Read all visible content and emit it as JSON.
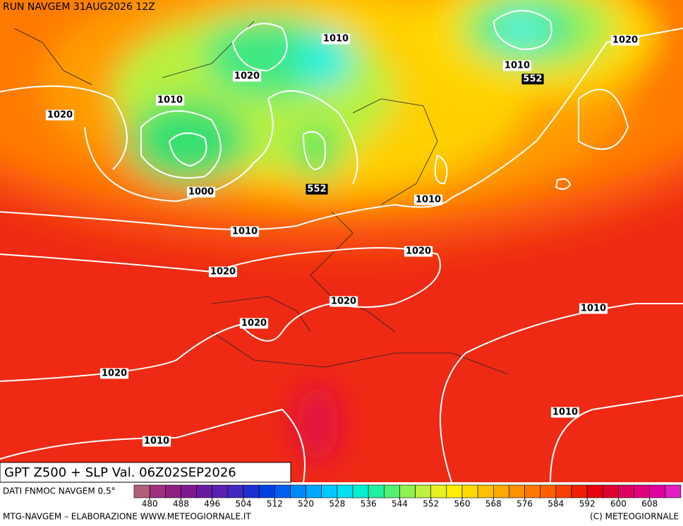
{
  "header": {
    "run": "RUN NAVGEM 31AUG2026 12Z"
  },
  "map": {
    "isobar_labels": [
      "1010",
      "1020",
      "1010",
      "1020",
      "1000",
      "1010",
      "1020",
      "1010",
      "1020",
      "1020",
      "1020",
      "1020",
      "1010",
      "1010",
      "1020",
      "1010",
      "1010"
    ],
    "height_labels": [
      "552",
      "552"
    ]
  },
  "title_box": {
    "title": "GPT Z500 + SLP Val. 06Z02SEP2026"
  },
  "legend": {
    "title": "DATI FNMOC NAVGEM 0.5°",
    "range": [
      476,
      616
    ],
    "ticks": [
      480,
      488,
      496,
      504,
      512,
      520,
      528,
      536,
      544,
      552,
      560,
      568,
      576,
      584,
      592,
      600,
      608
    ],
    "colors": [
      "#b0607a",
      "#a03080",
      "#902080",
      "#801890",
      "#6a1aa0",
      "#5a20b0",
      "#4028c0",
      "#2030d0",
      "#0040e0",
      "#0060f0",
      "#0088f8",
      "#00a8ff",
      "#00c8ff",
      "#00e0f0",
      "#00f0d0",
      "#20f0a0",
      "#50f070",
      "#90f050",
      "#c0f040",
      "#e8f020",
      "#fff000",
      "#ffd800",
      "#ffc000",
      "#ffa800",
      "#ff9000",
      "#ff7800",
      "#ff6000",
      "#f84000",
      "#f02000",
      "#e80010",
      "#e00030",
      "#e00060",
      "#e00080",
      "#e000a0",
      "#e020c0"
    ]
  },
  "footer": {
    "left": "MTG-NAVGEM – ELABORAZIONE WWW.METEOGIORNALE.IT",
    "right": "(C) METEOGIORNALE"
  }
}
